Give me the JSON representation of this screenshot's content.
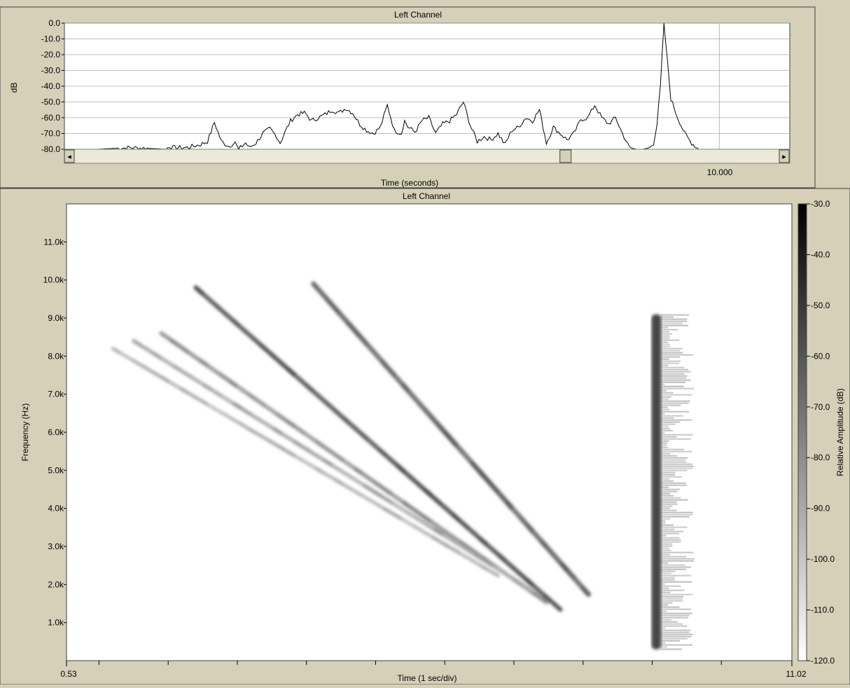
{
  "colors": {
    "panel_bg": "#d6d0b8",
    "plot_bg": "#ffffff",
    "grid": "#a9a9a9",
    "trace": "#000000",
    "border": "#404040",
    "scrollbar_track": "#ece9d8"
  },
  "icons": {
    "scroll_left": "◂",
    "scroll_right": "▸"
  },
  "chart_data": [
    {
      "type": "line",
      "title": "Left Channel",
      "xlabel": "Time (seconds)",
      "ylabel": "dB",
      "ylim": [
        -80,
        0
      ],
      "grid": true,
      "yticks": [
        "0.0",
        "-10.0",
        "-20.0",
        "-30.0",
        "-40.0",
        "-50.0",
        "-60.0",
        "-70.0",
        "-80.0"
      ],
      "xtick_label": "10.000",
      "scroll_thumb_fraction": 0.7,
      "x": [
        0.53,
        1.0,
        1.5,
        2.0,
        2.05,
        2.1,
        2.3,
        2.5,
        2.6,
        2.7,
        2.8,
        2.9,
        3.0,
        3.05,
        3.1,
        3.15,
        3.2,
        3.3,
        3.4,
        3.5,
        3.6,
        3.65,
        3.7,
        3.8,
        3.9,
        4.0,
        4.05,
        4.1,
        4.2,
        4.3,
        4.4,
        4.5,
        4.6,
        4.7,
        4.8,
        4.9,
        5.0,
        5.1,
        5.2,
        5.3,
        5.4,
        5.45,
        5.5,
        5.6,
        5.7,
        5.8,
        5.9,
        6.0,
        6.1,
        6.2,
        6.3,
        6.4,
        6.5,
        6.6,
        6.7,
        6.8,
        6.9,
        7.0,
        7.1,
        7.2,
        7.3,
        7.4,
        7.5,
        7.6,
        7.7,
        7.8,
        7.9,
        8.0,
        8.1,
        8.2,
        8.3,
        8.4,
        8.5,
        8.6,
        8.7,
        8.8,
        8.9,
        9.0,
        9.05,
        9.1,
        9.15,
        9.2,
        9.3,
        9.4,
        9.5,
        9.6,
        9.7,
        9.8,
        10.0,
        11.02
      ],
      "y": [
        -80,
        -80,
        -79,
        -80,
        -78,
        -79,
        -79,
        -77,
        -75,
        -63,
        -75,
        -78,
        -76,
        -80,
        -78,
        -76,
        -79,
        -76,
        -70,
        -67,
        -72,
        -76,
        -71,
        -62,
        -58,
        -57,
        -59,
        -62,
        -60,
        -58,
        -55,
        -57,
        -54,
        -57,
        -64,
        -68,
        -70,
        -66,
        -52,
        -68,
        -70,
        -62,
        -66,
        -69,
        -62,
        -60,
        -70,
        -64,
        -62,
        -58,
        -50,
        -65,
        -75,
        -72,
        -74,
        -70,
        -77,
        -68,
        -66,
        -60,
        -62,
        -55,
        -76,
        -66,
        -70,
        -74,
        -70,
        -61,
        -60,
        -52,
        -60,
        -64,
        -60,
        -70,
        -79,
        -80,
        -80,
        -79,
        -76,
        -64,
        -40,
        0,
        -48,
        -60,
        -70,
        -76,
        -80,
        -80,
        -80,
        -80
      ]
    },
    {
      "type": "heatmap",
      "title": "Left Channel",
      "xlabel": "Time (1 sec/div)",
      "ylabel": "Frequency (Hz)",
      "colorbar_label": "Relative Amplitude (dB)",
      "xlim": [
        0.53,
        11.02
      ],
      "ylim": [
        0,
        12000
      ],
      "clim": [
        -120,
        -30
      ],
      "x_range_labels": [
        "0.53",
        "11.02"
      ],
      "yticks": [
        {
          "value": 1000,
          "label": "1.0k"
        },
        {
          "value": 2000,
          "label": "2.0k"
        },
        {
          "value": 3000,
          "label": "3.0k"
        },
        {
          "value": 4000,
          "label": "4.0k"
        },
        {
          "value": 5000,
          "label": "5.0k"
        },
        {
          "value": 6000,
          "label": "6.0k"
        },
        {
          "value": 7000,
          "label": "7.0k"
        },
        {
          "value": 8000,
          "label": "8.0k"
        },
        {
          "value": 9000,
          "label": "9.0k"
        },
        {
          "value": 10000,
          "label": "10.0k"
        },
        {
          "value": 11000,
          "label": "11.0k"
        }
      ],
      "xticks": [
        1,
        2,
        3,
        4,
        5,
        6,
        7,
        8,
        9,
        10
      ],
      "colorbar_ticks": [
        {
          "value": -30,
          "label": "-30.0"
        },
        {
          "value": -40,
          "label": "-40.0"
        },
        {
          "value": -50,
          "label": "-50.0"
        },
        {
          "value": -60,
          "label": "-60.0"
        },
        {
          "value": -70,
          "label": "-70.0"
        },
        {
          "value": -80,
          "label": "-80.0"
        },
        {
          "value": -90,
          "label": "-90.0"
        },
        {
          "value": -100,
          "label": "-100.0"
        },
        {
          "value": -110,
          "label": "-110.0"
        },
        {
          "value": -120,
          "label": "-120.0"
        }
      ],
      "sweeps": [
        {
          "t_start": 4.1,
          "f_start": 9900,
          "t_end": 8.1,
          "f_end": 1700,
          "level": -68
        },
        {
          "t_start": 2.4,
          "f_start": 9800,
          "t_end": 7.7,
          "f_end": 1300,
          "level": -62
        },
        {
          "t_start": 1.9,
          "f_start": 8600,
          "t_end": 7.5,
          "f_end": 1500,
          "level": -82
        },
        {
          "t_start": 1.5,
          "f_start": 8400,
          "t_end": 7.3,
          "f_end": 1800,
          "level": -88
        },
        {
          "t_start": 1.2,
          "f_start": 8200,
          "t_end": 6.8,
          "f_end": 2200,
          "level": -92
        }
      ],
      "impulse": {
        "t": 9.06,
        "f_low": 300,
        "f_high": 9100,
        "level": -55,
        "tail_end": 9.6
      }
    }
  ]
}
